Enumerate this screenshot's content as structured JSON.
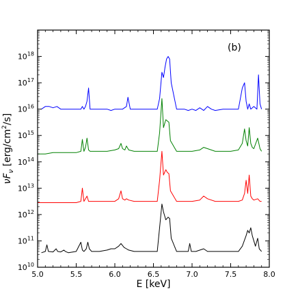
{
  "chart_data": {
    "type": "line",
    "panel_label": "(b)",
    "xlabel": "E [keV]",
    "ylabel": "νF_ν [erg/cm²/s]",
    "ylabel_parts": {
      "nu": "ν",
      "F": "F",
      "sub": "ν",
      "units": " [erg/cm",
      "sup": "2",
      "tail": "/s]"
    },
    "xlim": [
      5.0,
      8.0
    ],
    "ylim_exponent": [
      10,
      19
    ],
    "y_scale": "log",
    "grid": false,
    "x_ticks": [
      {
        "value": 5.0,
        "label": "5.0"
      },
      {
        "value": 5.5,
        "label": "5.5"
      },
      {
        "value": 6.0,
        "label": "6.0"
      },
      {
        "value": 6.5,
        "label": "6.5"
      },
      {
        "value": 7.0,
        "label": "7.0"
      },
      {
        "value": 7.5,
        "label": "7.5"
      },
      {
        "value": 8.0,
        "label": "8.0"
      }
    ],
    "y_ticks": [
      {
        "exp": 10,
        "base": "10",
        "sup": "10"
      },
      {
        "exp": 11,
        "base": "10",
        "sup": "11"
      },
      {
        "exp": 12,
        "base": "10",
        "sup": "12"
      },
      {
        "exp": 13,
        "base": "10",
        "sup": "13"
      },
      {
        "exp": 14,
        "base": "10",
        "sup": "14"
      },
      {
        "exp": 15,
        "base": "10",
        "sup": "15"
      },
      {
        "exp": 16,
        "base": "10",
        "sup": "16"
      },
      {
        "exp": 17,
        "base": "10",
        "sup": "17"
      },
      {
        "exp": 18,
        "base": "10",
        "sup": "18"
      }
    ],
    "series": [
      {
        "color": "#000000",
        "x": [
          5.05,
          5.1,
          5.12,
          5.14,
          5.2,
          5.24,
          5.26,
          5.3,
          5.34,
          5.36,
          5.4,
          5.5,
          5.56,
          5.58,
          5.6,
          5.63,
          5.65,
          5.67,
          5.7,
          5.8,
          5.9,
          5.95,
          6.0,
          6.05,
          6.08,
          6.12,
          6.15,
          6.18,
          6.25,
          6.35,
          6.45,
          6.55,
          6.58,
          6.61,
          6.63,
          6.66,
          6.69,
          6.71,
          6.73,
          6.8,
          6.9,
          6.95,
          6.97,
          6.99,
          7.05,
          7.15,
          7.2,
          7.3,
          7.4,
          7.5,
          7.6,
          7.65,
          7.7,
          7.72,
          7.74,
          7.76,
          7.78,
          7.82,
          7.85,
          7.87,
          7.9
        ],
        "y": [
          10.55,
          10.6,
          10.85,
          10.6,
          10.58,
          10.7,
          10.6,
          10.58,
          10.65,
          10.6,
          10.55,
          10.6,
          10.95,
          10.65,
          10.6,
          10.7,
          10.95,
          10.7,
          10.6,
          10.6,
          10.65,
          10.7,
          10.7,
          10.8,
          10.9,
          10.75,
          10.7,
          10.65,
          10.6,
          10.6,
          10.6,
          10.6,
          11.5,
          12.4,
          12.1,
          11.8,
          11.9,
          11.85,
          11.1,
          10.6,
          10.6,
          10.6,
          10.9,
          10.6,
          10.6,
          10.7,
          10.6,
          10.6,
          10.6,
          10.6,
          10.6,
          10.8,
          11.2,
          11.4,
          11.3,
          11.5,
          11.2,
          10.8,
          11.1,
          10.7,
          10.6
        ]
      },
      {
        "color": "#ff0000",
        "x": [
          5.0,
          5.1,
          5.2,
          5.3,
          5.4,
          5.5,
          5.56,
          5.58,
          5.6,
          5.62,
          5.64,
          5.66,
          5.68,
          5.7,
          5.8,
          5.9,
          6.0,
          6.05,
          6.08,
          6.1,
          6.13,
          6.15,
          6.18,
          6.25,
          6.35,
          6.45,
          6.55,
          6.58,
          6.61,
          6.63,
          6.66,
          6.68,
          6.7,
          6.72,
          6.8,
          6.9,
          7.0,
          7.1,
          7.15,
          7.2,
          7.3,
          7.4,
          7.5,
          7.6,
          7.65,
          7.68,
          7.7,
          7.72,
          7.74,
          7.76,
          7.78,
          7.8,
          7.85,
          7.88,
          7.9
        ],
        "y": [
          12.45,
          12.45,
          12.45,
          12.45,
          12.45,
          12.45,
          12.5,
          13.0,
          12.5,
          12.6,
          12.7,
          12.5,
          12.5,
          12.5,
          12.5,
          12.5,
          12.5,
          12.6,
          12.9,
          12.6,
          12.55,
          12.6,
          12.55,
          12.5,
          12.5,
          12.5,
          12.5,
          13.3,
          14.4,
          13.5,
          13.7,
          13.6,
          13.55,
          12.9,
          12.5,
          12.5,
          12.5,
          12.55,
          12.7,
          12.6,
          12.5,
          12.5,
          12.5,
          12.5,
          12.55,
          12.8,
          13.3,
          12.8,
          13.5,
          12.7,
          12.6,
          12.55,
          12.6,
          12.5,
          12.5
        ]
      },
      {
        "color": "#008000",
        "x": [
          5.0,
          5.1,
          5.2,
          5.3,
          5.4,
          5.5,
          5.56,
          5.58,
          5.6,
          5.62,
          5.64,
          5.66,
          5.68,
          5.7,
          5.8,
          5.9,
          6.0,
          6.05,
          6.08,
          6.1,
          6.13,
          6.15,
          6.18,
          6.25,
          6.35,
          6.45,
          6.55,
          6.58,
          6.61,
          6.63,
          6.66,
          6.68,
          6.7,
          6.72,
          6.8,
          6.9,
          7.0,
          7.1,
          7.15,
          7.2,
          7.3,
          7.4,
          7.5,
          7.6,
          7.65,
          7.68,
          7.7,
          7.72,
          7.74,
          7.76,
          7.78,
          7.8,
          7.85,
          7.88,
          7.9
        ],
        "y": [
          14.3,
          14.3,
          14.35,
          14.35,
          14.35,
          14.35,
          14.4,
          14.85,
          14.4,
          14.55,
          14.9,
          14.45,
          14.4,
          14.4,
          14.4,
          14.4,
          14.45,
          14.5,
          14.7,
          14.5,
          14.45,
          14.6,
          14.45,
          14.4,
          14.4,
          14.4,
          14.4,
          15.1,
          16.4,
          15.3,
          15.6,
          15.55,
          15.5,
          14.8,
          14.4,
          14.4,
          14.4,
          14.45,
          14.55,
          14.5,
          14.4,
          14.4,
          14.4,
          14.45,
          14.7,
          15.25,
          14.8,
          14.6,
          15.3,
          14.7,
          14.55,
          14.5,
          14.9,
          14.5,
          14.4
        ]
      },
      {
        "color": "#0000ff",
        "x": [
          5.05,
          5.1,
          5.15,
          5.2,
          5.25,
          5.3,
          5.4,
          5.5,
          5.56,
          5.58,
          5.6,
          5.62,
          5.64,
          5.66,
          5.68,
          5.7,
          5.8,
          5.9,
          5.95,
          6.0,
          6.05,
          6.1,
          6.15,
          6.17,
          6.2,
          6.3,
          6.4,
          6.5,
          6.55,
          6.58,
          6.61,
          6.63,
          6.65,
          6.67,
          6.69,
          6.71,
          6.73,
          6.8,
          6.9,
          6.95,
          7.0,
          7.05,
          7.1,
          7.15,
          7.2,
          7.25,
          7.3,
          7.4,
          7.5,
          7.6,
          7.65,
          7.68,
          7.7,
          7.72,
          7.74,
          7.76,
          7.8,
          7.84,
          7.86,
          7.88,
          7.9
        ],
        "y": [
          16.0,
          16.1,
          16.1,
          16.05,
          16.1,
          16.0,
          16.0,
          16.0,
          16.0,
          16.1,
          16.0,
          16.1,
          16.3,
          16.8,
          16.0,
          16.0,
          16.0,
          16.0,
          15.95,
          16.0,
          16.0,
          16.0,
          16.1,
          16.45,
          16.0,
          16.0,
          16.0,
          16.0,
          16.0,
          16.4,
          17.4,
          17.2,
          17.6,
          17.9,
          18.0,
          17.9,
          17.0,
          16.0,
          16.0,
          15.95,
          16.0,
          15.95,
          16.05,
          15.95,
          16.1,
          16.0,
          15.95,
          16.0,
          16.0,
          16.0,
          16.8,
          17.0,
          16.3,
          16.0,
          16.2,
          16.0,
          16.1,
          16.0,
          17.3,
          16.2,
          16.0
        ]
      }
    ]
  }
}
